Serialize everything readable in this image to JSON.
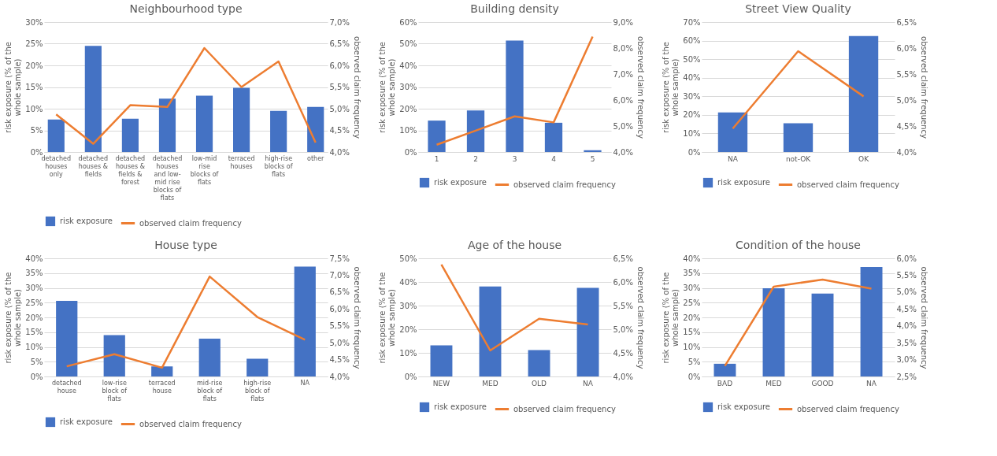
{
  "chart_data": [
    {
      "type": "bar",
      "title": "Neighbourhood type",
      "ylabel": "risk exposure (% of the whole sample)",
      "y2label": "observed claim frequency",
      "categories": [
        "detached houses only",
        "detached houses & fields",
        "detached houses & fields & forest",
        "detached houses and low-mid rise blocks of flats",
        "low-mid rise blocks of flats",
        "terraced houses",
        "high-rise blocks of flats",
        "other"
      ],
      "series": [
        {
          "name": "risk exposure",
          "color": "#4472c4",
          "values": [
            7.5,
            24.5,
            7.7,
            12.3,
            13.0,
            14.8,
            9.5,
            10.4
          ]
        },
        {
          "name": "observed claim frequency",
          "type": "line",
          "axis": "y2",
          "color": "#ed7d31",
          "values": [
            4.87,
            4.19,
            5.08,
            5.04,
            6.4,
            5.5,
            6.09,
            4.22
          ]
        }
      ],
      "ylim": [
        0,
        30
      ],
      "yticks": [
        {
          "value": 0,
          "label": "0%"
        },
        {
          "value": 5,
          "label": "5%"
        },
        {
          "value": 10,
          "label": "10%"
        },
        {
          "value": 15,
          "label": "15%"
        },
        {
          "value": 20,
          "label": "20%"
        },
        {
          "value": 25,
          "label": "25%"
        },
        {
          "value": 30,
          "label": "30%"
        }
      ],
      "y2lim": [
        4.0,
        7.0
      ],
      "y2ticks": [
        {
          "value": 4.0,
          "label": "4,0%"
        },
        {
          "value": 4.5,
          "label": "4,5%"
        },
        {
          "value": 5.0,
          "label": "5,0%"
        },
        {
          "value": 5.5,
          "label": "5,5%"
        },
        {
          "value": 6.0,
          "label": "6,0%"
        },
        {
          "value": 6.5,
          "label": "6,5%"
        },
        {
          "value": 7.0,
          "label": "7,0%"
        }
      ],
      "grid": "y",
      "legend": "bottom"
    },
    {
      "type": "bar",
      "title": "Building density",
      "ylabel": "risk exposure (% of the whole sample)",
      "y2label": "observed claim frequency",
      "categories": [
        "1",
        "2",
        "3",
        "4",
        "5"
      ],
      "series": [
        {
          "name": "risk exposure",
          "color": "#4472c4",
          "values": [
            14.5,
            19.2,
            51.5,
            13.5,
            0.8
          ]
        },
        {
          "name": "observed claim frequency",
          "type": "line",
          "axis": "y2",
          "color": "#ed7d31",
          "values": [
            4.28,
            4.82,
            5.37,
            5.14,
            8.44
          ]
        }
      ],
      "ylim": [
        0,
        60
      ],
      "yticks": [
        {
          "value": 0,
          "label": "0%"
        },
        {
          "value": 10,
          "label": "10%"
        },
        {
          "value": 20,
          "label": "20%"
        },
        {
          "value": 30,
          "label": "30%"
        },
        {
          "value": 40,
          "label": "40%"
        },
        {
          "value": 50,
          "label": "50%"
        },
        {
          "value": 60,
          "label": "60%"
        }
      ],
      "y2lim": [
        4.0,
        9.0
      ],
      "y2ticks": [
        {
          "value": 4.0,
          "label": "4,0%"
        },
        {
          "value": 5.0,
          "label": "5,0%"
        },
        {
          "value": 6.0,
          "label": "6,0%"
        },
        {
          "value": 7.0,
          "label": "7,0%"
        },
        {
          "value": 8.0,
          "label": "8,0%"
        },
        {
          "value": 9.0,
          "label": "9,0%"
        }
      ],
      "grid": "y",
      "legend": "bottom"
    },
    {
      "type": "bar",
      "title": "Street View Quality",
      "ylabel": "risk exposure (% of the whole sample)",
      "y2label": "observed claim frequency",
      "categories": [
        "NA",
        "not-OK",
        "OK"
      ],
      "series": [
        {
          "name": "risk exposure",
          "color": "#4472c4",
          "values": [
            21.3,
            15.5,
            62.5
          ]
        },
        {
          "name": "observed claim frequency",
          "type": "line",
          "axis": "y2",
          "color": "#ed7d31",
          "values": [
            4.45,
            5.94,
            5.07
          ]
        }
      ],
      "ylim": [
        0,
        70
      ],
      "yticks": [
        {
          "value": 0,
          "label": "0%"
        },
        {
          "value": 10,
          "label": "10%"
        },
        {
          "value": 20,
          "label": "20%"
        },
        {
          "value": 30,
          "label": "30%"
        },
        {
          "value": 40,
          "label": "40%"
        },
        {
          "value": 50,
          "label": "50%"
        },
        {
          "value": 60,
          "label": "60%"
        },
        {
          "value": 70,
          "label": "70%"
        }
      ],
      "y2lim": [
        4.0,
        6.5
      ],
      "y2ticks": [
        {
          "value": 4.0,
          "label": "4,0%"
        },
        {
          "value": 4.5,
          "label": "4,5%"
        },
        {
          "value": 5.0,
          "label": "5,0%"
        },
        {
          "value": 5.5,
          "label": "5,5%"
        },
        {
          "value": 6.0,
          "label": "6,0%"
        },
        {
          "value": 6.5,
          "label": "6,5%"
        }
      ],
      "grid": "y",
      "legend": "bottom"
    },
    {
      "type": "bar",
      "title": "House type",
      "ylabel": "risk exposure (% of the whole sample)",
      "y2label": "observed claim frequency",
      "categories": [
        "detached house",
        "low-rise block of flats",
        "terraced house",
        "mid-rise block of flats",
        "high-rise block of flats",
        "NA"
      ],
      "series": [
        {
          "name": "risk exposure",
          "color": "#4472c4",
          "values": [
            25.6,
            14.0,
            3.4,
            12.8,
            6.0,
            37.2
          ]
        },
        {
          "name": "observed claim frequency",
          "type": "line",
          "axis": "y2",
          "color": "#ed7d31",
          "values": [
            4.3,
            4.66,
            4.26,
            6.96,
            5.76,
            5.09
          ]
        }
      ],
      "ylim": [
        0,
        40
      ],
      "yticks": [
        {
          "value": 0,
          "label": "0%"
        },
        {
          "value": 5,
          "label": "5%"
        },
        {
          "value": 10,
          "label": "10%"
        },
        {
          "value": 15,
          "label": "15%"
        },
        {
          "value": 20,
          "label": "20%"
        },
        {
          "value": 25,
          "label": "25%"
        },
        {
          "value": 30,
          "label": "30%"
        },
        {
          "value": 35,
          "label": "35%"
        },
        {
          "value": 40,
          "label": "40%"
        }
      ],
      "y2lim": [
        4.0,
        7.5
      ],
      "y2ticks": [
        {
          "value": 4.0,
          "label": "4,0%"
        },
        {
          "value": 4.5,
          "label": "4,5%"
        },
        {
          "value": 5.0,
          "label": "5,0%"
        },
        {
          "value": 5.5,
          "label": "5,5%"
        },
        {
          "value": 6.0,
          "label": "6,0%"
        },
        {
          "value": 6.5,
          "label": "6,5%"
        },
        {
          "value": 7.0,
          "label": "7,0%"
        },
        {
          "value": 7.5,
          "label": "7,5%"
        }
      ],
      "grid": "y",
      "legend": "bottom"
    },
    {
      "type": "bar",
      "title": "Age of the house",
      "ylabel": "risk exposure (% of the whole sample)",
      "y2label": "observed claim frequency",
      "categories": [
        "NEW",
        "MED",
        "OLD",
        "NA"
      ],
      "series": [
        {
          "name": "risk exposure",
          "color": "#4472c4",
          "values": [
            13.2,
            38.1,
            11.2,
            37.5
          ]
        },
        {
          "name": "observed claim frequency",
          "type": "line",
          "axis": "y2",
          "color": "#ed7d31",
          "values": [
            6.37,
            4.55,
            5.22,
            5.1
          ]
        }
      ],
      "ylim": [
        0,
        50
      ],
      "yticks": [
        {
          "value": 0,
          "label": "0%"
        },
        {
          "value": 10,
          "label": "10%"
        },
        {
          "value": 20,
          "label": "20%"
        },
        {
          "value": 30,
          "label": "30%"
        },
        {
          "value": 40,
          "label": "40%"
        },
        {
          "value": 50,
          "label": "50%"
        }
      ],
      "y2lim": [
        4.0,
        6.5
      ],
      "y2ticks": [
        {
          "value": 4.0,
          "label": "4,0%"
        },
        {
          "value": 4.5,
          "label": "4,5%"
        },
        {
          "value": 5.0,
          "label": "5,0%"
        },
        {
          "value": 5.5,
          "label": "5,5%"
        },
        {
          "value": 6.0,
          "label": "6,0%"
        },
        {
          "value": 6.5,
          "label": "6,5%"
        }
      ],
      "grid": "y",
      "legend": "bottom"
    },
    {
      "type": "bar",
      "title": "Condition of the house",
      "ylabel": "risk exposure (% of the whole sample)",
      "y2label": "observed claim frequency",
      "categories": [
        "BAD",
        "MED",
        "GOOD",
        "NA"
      ],
      "series": [
        {
          "name": "risk exposure",
          "color": "#4472c4",
          "values": [
            4.3,
            29.9,
            28.1,
            37.1
          ]
        },
        {
          "name": "observed claim frequency",
          "type": "line",
          "axis": "y2",
          "color": "#ed7d31",
          "values": [
            2.81,
            5.16,
            5.37,
            5.1
          ]
        }
      ],
      "ylim": [
        0,
        40
      ],
      "yticks": [
        {
          "value": 0,
          "label": "0%"
        },
        {
          "value": 5,
          "label": "5%"
        },
        {
          "value": 10,
          "label": "10%"
        },
        {
          "value": 15,
          "label": "15%"
        },
        {
          "value": 20,
          "label": "20%"
        },
        {
          "value": 25,
          "label": "25%"
        },
        {
          "value": 30,
          "label": "30%"
        },
        {
          "value": 35,
          "label": "35%"
        },
        {
          "value": 40,
          "label": "40%"
        }
      ],
      "y2lim": [
        2.5,
        6.0
      ],
      "y2ticks": [
        {
          "value": 2.5,
          "label": "2,5%"
        },
        {
          "value": 3.0,
          "label": "3,0%"
        },
        {
          "value": 3.5,
          "label": "3,5%"
        },
        {
          "value": 4.0,
          "label": "4,0%"
        },
        {
          "value": 4.5,
          "label": "4,5%"
        },
        {
          "value": 5.0,
          "label": "5,0%"
        },
        {
          "value": 5.5,
          "label": "5,5%"
        },
        {
          "value": 6.0,
          "label": "6,0%"
        }
      ],
      "grid": "y",
      "legend": "bottom"
    }
  ]
}
